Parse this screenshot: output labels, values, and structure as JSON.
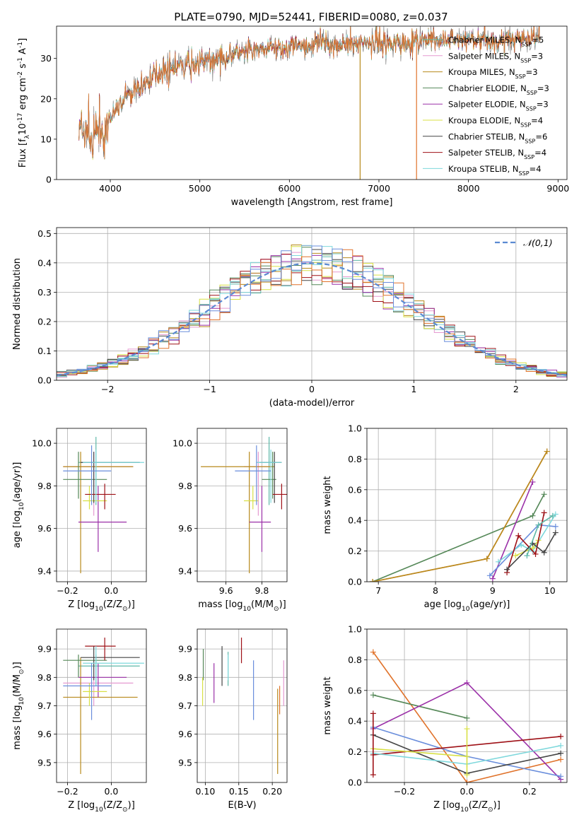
{
  "figure_title": "PLATE=0790, MJD=52441, FIBERID=0080, z=0.037",
  "models": [
    {
      "name": "Chabrier MILES, N$_{SSP}$=5",
      "color": "#5eb8a8"
    },
    {
      "name": "Salpeter MILES, N$_{SSP}$=3",
      "color": "#e59ad1"
    },
    {
      "name": "Kroupa MILES, N$_{SSP}$=3",
      "color": "#b88a1c"
    },
    {
      "name": "Chabrier ELODIE, N$_{SSP}$=3",
      "color": "#558858"
    },
    {
      "name": "Salpeter ELODIE, N$_{SSP}$=3",
      "color": "#9b30a8"
    },
    {
      "name": "Kroupa ELODIE, N$_{SSP}$=4",
      "color": "#d8e046"
    },
    {
      "name": "Chabrier STELIB, N$_{SSP}$=6",
      "color": "#454545"
    },
    {
      "name": "Salpeter STELIB, N$_{SSP}$=4",
      "color": "#9e1016"
    },
    {
      "name": "Kroupa STELIB, N$_{SSP}$=4",
      "color": "#7ed8dc"
    }
  ],
  "extra_colors": {
    "orange": "#e0722a",
    "blue": "#6a8edc",
    "data": "#777777",
    "normal": "#5b8ad2"
  },
  "chart_data": [
    {
      "id": "spectrum",
      "type": "line",
      "title": "",
      "xlabel": "wavelength [Angstrom, rest frame]",
      "ylabel": "Flux [f$_\\lambda$10$^{-17}$ erg cm$^{-2}$ s$^{-1}$ A$^{-1}$]",
      "xlim": [
        3400,
        9100
      ],
      "ylim": [
        0,
        38
      ],
      "xticks": [
        4000,
        5000,
        6000,
        7000,
        8000,
        9000
      ],
      "yticks": [
        0,
        10,
        20,
        30
      ],
      "grid": false,
      "legend": "right",
      "continuum": {
        "x": [
          3650,
          3700,
          3750,
          3800,
          3850,
          3900,
          3950,
          4000,
          4100,
          4200,
          4300,
          4400,
          4500,
          4600,
          4800,
          5000,
          5200,
          5400,
          5600,
          6000,
          6400,
          6800,
          7200,
          7600,
          8000,
          8400,
          8800
        ],
        "y": [
          13,
          11,
          12,
          9,
          12,
          13,
          9,
          15,
          18,
          21,
          22,
          24,
          26,
          27,
          28,
          29,
          30,
          31,
          32,
          33,
          33.5,
          34,
          34,
          34.5,
          34.5,
          34.5,
          35
        ]
      },
      "artifacts": [
        {
          "x": 6790,
          "y_from": 33,
          "y_to": 0,
          "color": "#b88a1c"
        },
        {
          "x": 7420,
          "y_from": 34,
          "y_to": 0,
          "color": "#e0722a"
        }
      ]
    },
    {
      "id": "residuals",
      "type": "area",
      "xlabel": "(data-model)/error",
      "ylabel": "Normed distribution",
      "xlim": [
        -2.5,
        2.5
      ],
      "ylim": [
        0,
        0.52
      ],
      "xticks": [
        -2,
        -1,
        0,
        1,
        2
      ],
      "yticks": [
        0.0,
        0.1,
        0.2,
        0.3,
        0.4,
        0.5
      ],
      "grid": true,
      "legend": "top-right",
      "legend_label": "$\\mathcal{N}(0,1)$",
      "bin_width": 0.1
    },
    {
      "id": "age_vs_Z",
      "type": "scatter",
      "xlabel": "Z [log$_{10}$(Z/Z$_\\odot$)]",
      "ylabel": "age  [log$_{10}$(age/yr)]",
      "xlim": [
        -0.25,
        0.16
      ],
      "ylim": [
        9.35,
        10.07
      ],
      "xticks": [
        -0.2,
        0.0
      ],
      "yticks": [
        9.4,
        9.6,
        9.8,
        10.0
      ],
      "grid": true,
      "points": [
        {
          "c": 0,
          "x": -0.07,
          "y": 9.91,
          "xe": [
            -0.15,
            0.13
          ],
          "ye": [
            9.71,
            10.03
          ]
        },
        {
          "c": 1,
          "x": -0.08,
          "y": 9.89,
          "xe": [
            -0.22,
            0.1
          ],
          "ye": [
            9.66,
            9.96
          ]
        },
        {
          "c": 2,
          "x": -0.14,
          "y": 9.89,
          "xe": [
            -0.22,
            0.1
          ],
          "ye": [
            9.39,
            9.96
          ]
        },
        {
          "c": 3,
          "x": -0.15,
          "y": 9.83,
          "xe": [
            -0.22,
            -0.02
          ],
          "ye": [
            9.74,
            9.96
          ]
        },
        {
          "c": 4,
          "x": -0.06,
          "y": 9.63,
          "xe": [
            -0.15,
            0.07
          ],
          "ye": [
            9.49,
            9.8
          ]
        },
        {
          "c": 5,
          "x": -0.1,
          "y": 9.73,
          "xe": [
            -0.13,
            -0.02
          ],
          "ye": [
            9.69,
            9.8
          ]
        },
        {
          "c": 6,
          "x": -0.08,
          "y": 9.91,
          "xe": [
            -0.14,
            0.13
          ],
          "ye": [
            9.72,
            9.96
          ]
        },
        {
          "c": 7,
          "x": -0.03,
          "y": 9.76,
          "xe": [
            -0.12,
            0.02
          ],
          "ye": [
            9.69,
            9.81
          ]
        },
        {
          "c": 8,
          "x": -0.07,
          "y": 9.91,
          "xe": [
            -0.13,
            0.15
          ],
          "ye": [
            9.72,
            9.97
          ]
        },
        {
          "c": "blue",
          "x": -0.09,
          "y": 9.87,
          "xe": [
            -0.22,
            0.0
          ],
          "ye": [
            9.71,
            9.99
          ]
        }
      ]
    },
    {
      "id": "age_vs_mass",
      "type": "scatter",
      "xlabel": "mass [log$_{10}$(M/M$_\\odot$)]",
      "ylabel": "",
      "xlim": [
        9.44,
        9.94
      ],
      "ylim": [
        9.35,
        10.07
      ],
      "xticks": [
        9.6,
        9.8
      ],
      "yticks": [
        9.4,
        9.6,
        9.8,
        10.0
      ],
      "grid": true,
      "points": [
        {
          "c": 0,
          "x": 9.84,
          "y": 9.91,
          "xe": [
            9.77,
            9.88
          ],
          "ye": [
            9.71,
            10.03
          ]
        },
        {
          "c": 1,
          "x": 9.78,
          "y": 9.89,
          "xe": [
            9.7,
            9.86
          ],
          "ye": [
            9.66,
            9.96
          ]
        },
        {
          "c": 2,
          "x": 9.73,
          "y": 9.89,
          "xe": [
            9.46,
            9.87
          ],
          "ye": [
            9.39,
            9.96
          ]
        },
        {
          "c": 3,
          "x": 9.86,
          "y": 9.83,
          "xe": [
            9.8,
            9.88
          ],
          "ye": [
            9.74,
            9.96
          ]
        },
        {
          "c": 4,
          "x": 9.8,
          "y": 9.63,
          "xe": [
            9.73,
            9.85
          ],
          "ye": [
            9.49,
            9.8
          ]
        },
        {
          "c": 5,
          "x": 9.75,
          "y": 9.73,
          "xe": [
            9.7,
            9.78
          ],
          "ye": [
            9.69,
            9.8
          ]
        },
        {
          "c": 6,
          "x": 9.87,
          "y": 9.91,
          "xe": [
            9.79,
            9.91
          ],
          "ye": [
            9.72,
            9.96
          ]
        },
        {
          "c": 7,
          "x": 9.91,
          "y": 9.76,
          "xe": [
            9.86,
            9.94
          ],
          "ye": [
            9.69,
            9.81
          ]
        },
        {
          "c": 8,
          "x": 9.85,
          "y": 9.91,
          "xe": [
            9.77,
            9.91
          ],
          "ye": [
            9.72,
            9.97
          ]
        },
        {
          "c": "blue",
          "x": 9.77,
          "y": 9.87,
          "xe": [
            9.65,
            9.85
          ],
          "ye": [
            9.71,
            9.99
          ]
        }
      ]
    },
    {
      "id": "weight_vs_age",
      "type": "line",
      "xlabel": "age  [log$_{10}$(age/yr)]",
      "ylabel": "mass weight",
      "xlim": [
        6.8,
        10.3
      ],
      "ylim": [
        0,
        1.0
      ],
      "xticks": [
        7,
        8,
        9,
        10
      ],
      "yticks": [
        0.0,
        0.2,
        0.4,
        0.6,
        0.8,
        1.0
      ],
      "grid": true,
      "series": [
        {
          "c": 3,
          "x": [
            6.9,
            9.7,
            9.9
          ],
          "y": [
            0.0,
            0.43,
            0.57
          ]
        },
        {
          "c": "orange",
          "x": [
            6.9,
            8.9,
            9.95
          ],
          "y": [
            0.0,
            0.15,
            0.85
          ]
        },
        {
          "c": 2,
          "x": [
            6.9,
            8.9,
            9.95
          ],
          "y": [
            0.0,
            0.15,
            0.85
          ]
        },
        {
          "c": 4,
          "x": [
            9.0,
            9.7
          ],
          "y": [
            0.02,
            0.65
          ]
        },
        {
          "c": "blue",
          "x": [
            8.95,
            9.8,
            10.1
          ],
          "y": [
            0.04,
            0.37,
            0.36
          ]
        },
        {
          "c": 8,
          "x": [
            9.1,
            9.5,
            9.7,
            10.1
          ],
          "y": [
            0.13,
            0.24,
            0.2,
            0.44
          ]
        },
        {
          "c": 5,
          "x": [
            9.4,
            9.7,
            9.8
          ],
          "y": [
            0.17,
            0.22,
            0.27
          ]
        },
        {
          "c": 7,
          "x": [
            9.25,
            9.45,
            9.75,
            9.9
          ],
          "y": [
            0.06,
            0.3,
            0.18,
            0.45
          ]
        },
        {
          "c": 6,
          "x": [
            9.25,
            9.7,
            9.9,
            10.1
          ],
          "y": [
            0.08,
            0.25,
            0.19,
            0.32
          ]
        },
        {
          "c": 0,
          "x": [
            9.6,
            9.8,
            10.05
          ],
          "y": [
            0.17,
            0.37,
            0.43
          ]
        }
      ]
    },
    {
      "id": "mass_vs_Z",
      "type": "scatter",
      "xlabel": "Z [log$_{10}$(Z/Z$_\\odot$)]",
      "ylabel": "mass [log$_{10}$(M/M$_\\odot$)]",
      "xlim": [
        -0.25,
        0.16
      ],
      "ylim": [
        9.43,
        9.97
      ],
      "xticks": [
        -0.2,
        0.0
      ],
      "yticks": [
        9.5,
        9.6,
        9.7,
        9.8,
        9.9
      ],
      "grid": true,
      "points": [
        {
          "c": 0,
          "x": -0.07,
          "y": 9.84,
          "xe": [
            -0.15,
            0.13
          ],
          "ye": [
            9.77,
            9.88
          ]
        },
        {
          "c": 1,
          "x": -0.08,
          "y": 9.78,
          "xe": [
            -0.22,
            0.1
          ],
          "ye": [
            9.7,
            9.86
          ]
        },
        {
          "c": 2,
          "x": -0.14,
          "y": 9.73,
          "xe": [
            -0.22,
            0.12
          ],
          "ye": [
            9.46,
            9.87
          ]
        },
        {
          "c": 3,
          "x": -0.15,
          "y": 9.86,
          "xe": [
            -0.22,
            -0.02
          ],
          "ye": [
            9.8,
            9.88
          ]
        },
        {
          "c": 4,
          "x": -0.06,
          "y": 9.8,
          "xe": [
            -0.15,
            0.07
          ],
          "ye": [
            9.73,
            9.85
          ]
        },
        {
          "c": 5,
          "x": -0.1,
          "y": 9.75,
          "xe": [
            -0.13,
            -0.02
          ],
          "ye": [
            9.7,
            9.78
          ]
        },
        {
          "c": 6,
          "x": -0.08,
          "y": 9.87,
          "xe": [
            -0.14,
            0.13
          ],
          "ye": [
            9.79,
            9.91
          ]
        },
        {
          "c": 7,
          "x": -0.03,
          "y": 9.91,
          "xe": [
            -0.12,
            0.02
          ],
          "ye": [
            9.86,
            9.94
          ]
        },
        {
          "c": 8,
          "x": -0.07,
          "y": 9.85,
          "xe": [
            -0.13,
            0.15
          ],
          "ye": [
            9.77,
            9.91
          ]
        },
        {
          "c": "blue",
          "x": -0.09,
          "y": 9.77,
          "xe": [
            -0.22,
            0.0
          ],
          "ye": [
            9.65,
            9.85
          ]
        }
      ]
    },
    {
      "id": "mass_vs_ebv",
      "type": "scatter",
      "xlabel": "E(B-V)",
      "ylabel": "",
      "xlim": [
        0.088,
        0.222
      ],
      "ylim": [
        9.43,
        9.97
      ],
      "xticks": [
        0.1,
        0.15,
        0.2
      ],
      "yticks": [
        9.5,
        9.6,
        9.7,
        9.8,
        9.9
      ],
      "grid": true,
      "points": [
        {
          "c": 0,
          "x": 0.134,
          "y": 9.84,
          "ye": [
            9.77,
            9.89
          ]
        },
        {
          "c": 1,
          "x": 0.217,
          "y": 9.78,
          "ye": [
            9.7,
            9.86
          ]
        },
        {
          "c": 2,
          "x": 0.208,
          "y": 9.73,
          "ye": [
            9.46,
            9.76
          ]
        },
        {
          "c": 3,
          "x": 0.097,
          "y": 9.86,
          "ye": [
            9.79,
            9.9
          ]
        },
        {
          "c": 4,
          "x": 0.113,
          "y": 9.8,
          "ye": [
            9.71,
            9.85
          ]
        },
        {
          "c": 5,
          "x": 0.096,
          "y": 9.75,
          "ye": [
            9.7,
            9.8
          ]
        },
        {
          "c": 6,
          "x": 0.125,
          "y": 9.87,
          "ye": [
            9.77,
            9.91
          ]
        },
        {
          "c": 7,
          "x": 0.154,
          "y": 9.91,
          "ye": [
            9.85,
            9.94
          ]
        },
        {
          "c": 8,
          "x": 0.134,
          "y": 9.85,
          "ye": [
            9.79,
            9.88
          ]
        },
        {
          "c": "blue",
          "x": 0.172,
          "y": 9.77,
          "ye": [
            9.65,
            9.86
          ]
        },
        {
          "c": "orange",
          "x": 0.211,
          "y": 9.73,
          "ye": [
            9.67,
            9.77
          ]
        }
      ]
    },
    {
      "id": "weight_vs_Z",
      "type": "line",
      "xlabel": "Z [log$_{10}$(Z/Z$_\\odot$)]",
      "ylabel": "mass weight",
      "xlim": [
        -0.32,
        0.32
      ],
      "ylim": [
        0,
        1.0
      ],
      "xticks": [
        -0.2,
        0.0,
        0.2
      ],
      "yticks": [
        0.0,
        0.2,
        0.4,
        0.6,
        0.8,
        1.0
      ],
      "grid": true,
      "series": [
        {
          "c": "orange",
          "x": [
            -0.3,
            0.0,
            0.3
          ],
          "y": [
            0.85,
            0.0,
            0.15
          ]
        },
        {
          "c": 3,
          "x": [
            -0.3,
            0.0
          ],
          "y": [
            0.57,
            0.42
          ]
        },
        {
          "c": 4,
          "x": [
            -0.3,
            0.0,
            0.3
          ],
          "y": [
            0.35,
            0.65,
            0.02
          ]
        },
        {
          "c": "blue",
          "x": [
            -0.3,
            0.0,
            0.3
          ],
          "y": [
            0.36,
            0.17,
            0.04
          ]
        },
        {
          "c": 7,
          "x": [
            -0.3,
            0.3
          ],
          "y": [
            0.18,
            0.3
          ]
        },
        {
          "c": 6,
          "x": [
            -0.3,
            0.0,
            0.3
          ],
          "y": [
            0.31,
            0.06,
            0.19
          ]
        },
        {
          "c": 5,
          "x": [
            -0.3,
            0.0
          ],
          "y": [
            0.22,
            0.17
          ]
        },
        {
          "c": 8,
          "x": [
            -0.3,
            0.0,
            0.3
          ],
          "y": [
            0.19,
            0.12,
            0.24
          ]
        },
        {
          "c": 7,
          "x": [
            -0.3,
            -0.3
          ],
          "y": [
            0.05,
            0.45
          ]
        },
        {
          "c": 5,
          "x": [
            0.0,
            0.0
          ],
          "y": [
            0.05,
            0.35
          ]
        }
      ]
    }
  ]
}
